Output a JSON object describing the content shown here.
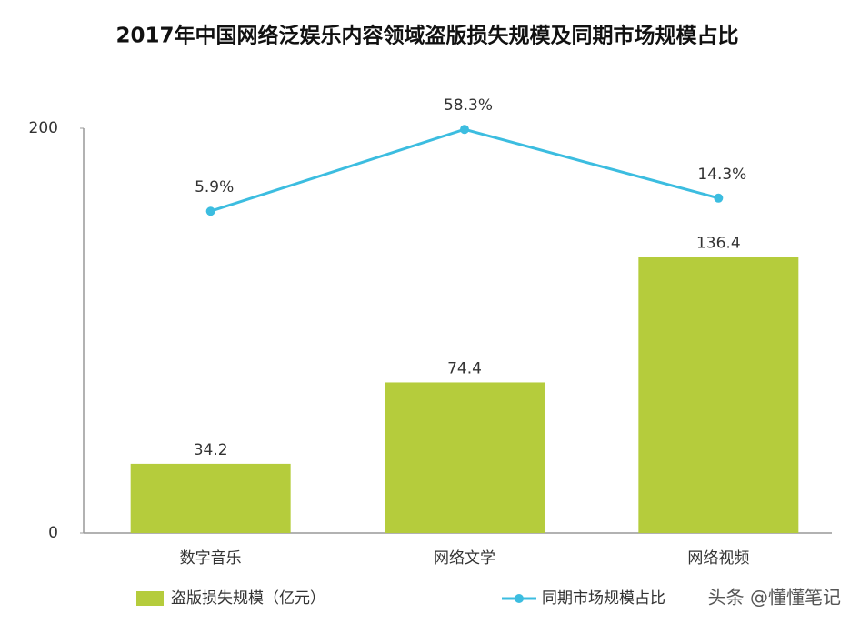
{
  "chart_data": {
    "type": "bar",
    "title": "2017年中国网络泛娱乐内容领域盗版损失规模及同期市场规模占比",
    "categories": [
      "数字音乐",
      "网络文学",
      "网络视频"
    ],
    "series": [
      {
        "name": "盗版损失规模（亿元）",
        "type": "bar",
        "color": "#b5cc3c",
        "values": [
          34.2,
          74.4,
          136.4
        ]
      },
      {
        "name": "同期市场规模占比",
        "type": "line",
        "axis": "y2",
        "color": "#3cbde0",
        "values": [
          5.9,
          58.3,
          14.3
        ],
        "value_labels": [
          "5.9%",
          "58.3%",
          "14.3%"
        ]
      }
    ],
    "ylim": [
      0,
      200
    ],
    "yticks": [
      0,
      200
    ],
    "y2lim": [
      -200,
      59
    ],
    "grid": false,
    "legend": "bottom",
    "watermark": "头条 @懂懂笔记"
  }
}
